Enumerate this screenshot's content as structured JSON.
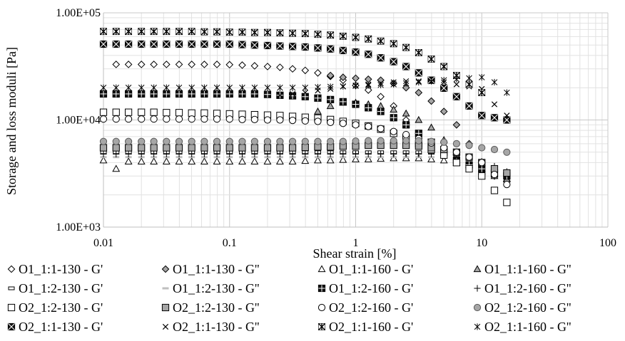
{
  "chart_data": {
    "type": "scatter",
    "xscale": "log",
    "yscale": "log",
    "xlim": [
      0.01,
      100
    ],
    "ylim": [
      1000,
      100000
    ],
    "xlabel": "Shear strain [%]",
    "ylabel": "Storage and loss moduli [Pa]",
    "x_ticks": [
      "0.01",
      "0.1",
      "1",
      "10",
      "100"
    ],
    "y_ticks": [
      "1.00E+03",
      "1.00E+04",
      "1.00E+05"
    ],
    "grid": true,
    "legend_position": "bottom",
    "x": [
      0.01,
      0.0126,
      0.0158,
      0.02,
      0.0251,
      0.0316,
      0.0398,
      0.0501,
      0.0631,
      0.0794,
      0.1,
      0.126,
      0.158,
      0.2,
      0.251,
      0.316,
      0.398,
      0.501,
      0.631,
      0.794,
      1.0,
      1.26,
      1.58,
      2.0,
      2.51,
      3.16,
      3.98,
      5.01,
      6.31,
      7.94,
      10.0,
      12.6,
      15.8
    ],
    "series": [
      {
        "name": "O1_1:1-130 - G'",
        "marker": "diamond-open",
        "x_start": 1,
        "values": [
          33000,
          33000,
          33000,
          33000,
          33000,
          33000,
          33000,
          33000,
          33000,
          32800,
          32500,
          32000,
          31500,
          31000,
          30000,
          29000,
          27500,
          25500,
          23500,
          21000,
          19000,
          16500,
          13500,
          10000,
          7500
        ]
      },
      {
        "name": "O1_1:1-130 - G''",
        "marker": "diamond-gray",
        "x_start": 18,
        "values": [
          26000,
          25000,
          24500,
          24000,
          23500,
          22000,
          20000,
          18000,
          15000,
          12000,
          9000,
          6000,
          4000,
          3000,
          2700
        ]
      },
      {
        "name": "O1_1:1-160 - G'",
        "marker": "triangle-open",
        "values": [
          4200,
          3500,
          4100,
          4100,
          4100,
          4100,
          4100,
          4100,
          4100,
          4100,
          4100,
          4100,
          4100,
          4100,
          4100,
          4100,
          4150,
          4200,
          4200,
          4250,
          4300,
          4300,
          4350,
          4400,
          4400,
          4400,
          4300,
          4200,
          4000,
          3800,
          3500,
          3100,
          2800
        ]
      },
      {
        "name": "O1_1:1-160 - G''",
        "marker": "triangle-gray",
        "x_start": 17,
        "values": [
          12000,
          13500,
          14500,
          14500,
          14000,
          13500,
          12500,
          11500,
          10000,
          8500,
          6500,
          5000,
          4000,
          3300,
          3000,
          2800
        ]
      },
      {
        "name": "O1_1:2-130 - G'",
        "marker": "dash-open",
        "values": [
          5000,
          5000,
          5000,
          5000,
          5000,
          5000,
          5000,
          5000,
          5000,
          5000,
          5000,
          5000,
          5000,
          5000,
          5000,
          5000,
          5000,
          5000,
          5000,
          5000,
          5000,
          5000,
          5000,
          5000,
          5000,
          5000,
          5000,
          4900,
          4700,
          4300,
          3800,
          3300,
          3000
        ]
      },
      {
        "name": "O1_1:2-130 - G''",
        "marker": "dash-gray",
        "values": [
          4500,
          4500,
          4500,
          4500,
          4500,
          4500,
          4500,
          4500,
          4500,
          4500,
          4500,
          4500,
          4500,
          4500,
          4500,
          4500,
          4500,
          4500,
          4500,
          4500,
          4500,
          4500,
          4500,
          4500,
          4500,
          4500,
          4500,
          4500,
          4400,
          4200,
          3800,
          3400,
          3100
        ]
      },
      {
        "name": "O1_1:2-160 - G'",
        "marker": "square-cross",
        "values": [
          17500,
          17500,
          17500,
          17500,
          17500,
          17500,
          17500,
          17500,
          17500,
          17500,
          17500,
          17500,
          17500,
          17300,
          17000,
          16800,
          16500,
          16000,
          15500,
          14800,
          14000,
          13000,
          12000,
          10500,
          9000,
          7500,
          6200,
          5000,
          4200,
          3800,
          3500,
          3200,
          3000
        ]
      },
      {
        "name": "O1_1:2-160 - G''",
        "marker": "plus",
        "values": [
          4800,
          4800,
          4800,
          4800,
          4800,
          4800,
          4800,
          4800,
          4800,
          4800,
          4800,
          4800,
          4800,
          4800,
          4800,
          4800,
          4800,
          4800,
          4800,
          4800,
          4800,
          4800,
          4800,
          4800,
          4800,
          4800,
          4800,
          4800,
          4700,
          4500,
          4100,
          3700,
          3300
        ]
      },
      {
        "name": "O2_1:2-130 - G'",
        "marker": "square-open",
        "values": [
          11800,
          11800,
          11800,
          11800,
          11800,
          11700,
          11700,
          11600,
          11600,
          11500,
          11400,
          11300,
          11200,
          11100,
          11000,
          10800,
          10600,
          10400,
          10100,
          9700,
          9300,
          8800,
          8200,
          7500,
          6800,
          6000,
          5300,
          4700,
          4000,
          3500,
          3000,
          2200,
          1700
        ]
      },
      {
        "name": "O2_1:2-130 - G''",
        "marker": "square-gray",
        "values": [
          5500,
          5500,
          5500,
          5500,
          5500,
          5500,
          5500,
          5500,
          5500,
          5500,
          5500,
          5500,
          5500,
          5500,
          5500,
          5500,
          5550,
          5600,
          5600,
          5700,
          5700,
          5800,
          5800,
          5800,
          5800,
          5700,
          5500,
          5300,
          5000,
          4500,
          4000,
          3500,
          3200
        ]
      },
      {
        "name": "O2_1:2-160 - G'",
        "marker": "circle-open",
        "values": [
          10200,
          10200,
          10200,
          10200,
          10200,
          10200,
          10200,
          10200,
          10200,
          10200,
          10200,
          10100,
          10100,
          10000,
          10000,
          9900,
          9800,
          9700,
          9500,
          9300,
          9000,
          8700,
          8300,
          7800,
          7300,
          6700,
          6100,
          5500,
          5000,
          4500,
          4000,
          3100,
          2500
        ]
      },
      {
        "name": "O2_1:2-160 - G''",
        "marker": "circle-gray",
        "values": [
          6300,
          6300,
          6300,
          6300,
          6300,
          6300,
          6300,
          6300,
          6300,
          6300,
          6300,
          6300,
          6300,
          6300,
          6300,
          6300,
          6300,
          6300,
          6300,
          6300,
          6350,
          6400,
          6400,
          6400,
          6400,
          6400,
          6300,
          6200,
          6000,
          5800,
          5500,
          5300,
          5000
        ]
      },
      {
        "name": "O2_1:1-130 - G'",
        "marker": "square-x",
        "values": [
          51000,
          51000,
          51000,
          51000,
          51000,
          51000,
          51000,
          51000,
          51000,
          51000,
          51000,
          50500,
          50000,
          49500,
          49000,
          48500,
          48000,
          47000,
          46000,
          44500,
          43000,
          41000,
          38000,
          35000,
          31500,
          27500,
          23500,
          19800,
          16500,
          13500,
          11000,
          10500,
          10000
        ]
      },
      {
        "name": "O2_1:1-130 - G''",
        "marker": "x",
        "x_start": 14,
        "values": [
          17000,
          17500,
          18000,
          18800,
          19500,
          20500,
          21000,
          21500,
          22000,
          22500,
          23000,
          23000,
          23000,
          22500,
          21500,
          20500,
          19500,
          14000,
          11000
        ]
      },
      {
        "name": "O2_1:1-160 - G'",
        "marker": "asterisk-box",
        "values": [
          67000,
          67000,
          67000,
          67000,
          67000,
          67000,
          67000,
          67000,
          66500,
          66500,
          66000,
          66000,
          65500,
          65500,
          65000,
          64500,
          64000,
          63000,
          62000,
          60500,
          59000,
          57000,
          54500,
          51500,
          47500,
          42500,
          37000,
          31500,
          26000,
          21500,
          18000
        ]
      },
      {
        "name": "O2_1:1-160 - G''",
        "marker": "asterisk",
        "values": [
          20000,
          20000,
          20000,
          20000,
          20000,
          20000,
          20000,
          20000,
          20000,
          20000,
          20000,
          20000,
          20000,
          20000,
          20000,
          20000,
          20000,
          20200,
          20400,
          20600,
          20800,
          21000,
          21200,
          21500,
          22000,
          22500,
          23000,
          23500,
          24000,
          24500,
          25000,
          22500,
          18000
        ]
      }
    ]
  }
}
